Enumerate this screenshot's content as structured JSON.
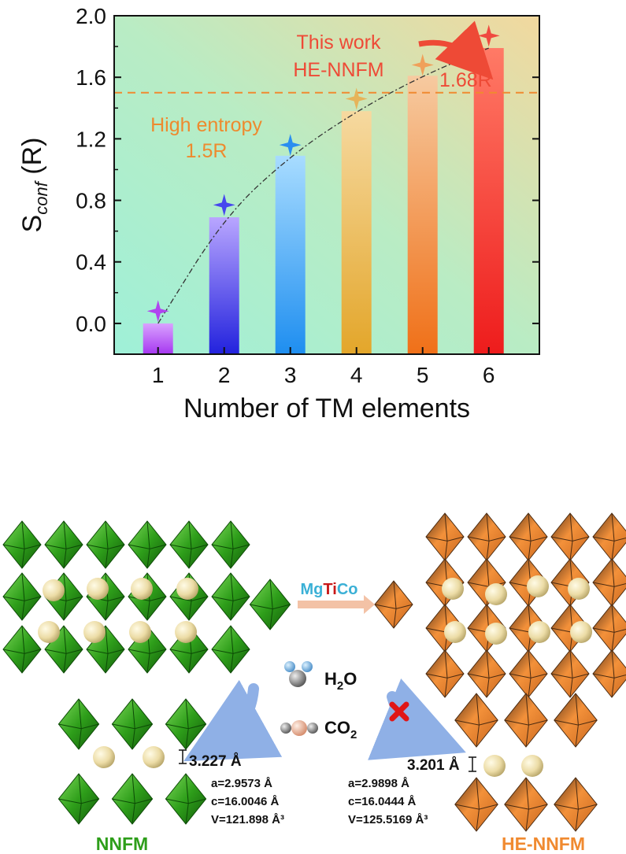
{
  "chart_data": {
    "type": "bar",
    "categories": [
      "1",
      "2",
      "3",
      "4",
      "5",
      "6"
    ],
    "values": [
      0.0,
      0.69,
      1.09,
      1.38,
      1.61,
      1.79
    ],
    "markers": [
      0.08,
      0.77,
      1.16,
      1.46,
      1.68,
      1.87
    ],
    "bar_colors": [
      [
        "#d9a2ff",
        "#a637f0"
      ],
      [
        "#b9a6ff",
        "#2222dd"
      ],
      [
        "#a8dcff",
        "#1e8ef0"
      ],
      [
        "#f6d9a0",
        "#e3a62a"
      ],
      [
        "#f6caa0",
        "#f07018"
      ],
      [
        "#ff7a66",
        "#ee1c1c"
      ]
    ],
    "marker_colors": [
      "#b044f0",
      "#4646ee",
      "#2a8ef0",
      "#e6b45a",
      "#f0a05a",
      "#f04a40"
    ],
    "xlabel": "Number of TM elements",
    "ylabel_main": "S",
    "ylabel_sub": "conf",
    "ylabel_unit": " (R)",
    "ylim": [
      -0.2,
      2.0
    ],
    "yticks": [
      "0.0",
      "0.4",
      "0.8",
      "1.2",
      "1.6",
      "2.0"
    ],
    "reference_line": {
      "value": 1.5,
      "label_1": "High entropy",
      "label_2": "1.5R",
      "color": "#f08a30"
    },
    "annotations": {
      "work_1": "This work",
      "work_2": "HE-NNFM",
      "value_label": "1.68R"
    }
  },
  "scheme": {
    "dopants": [
      {
        "text": "Mg",
        "color": "#3ab0d6"
      },
      {
        "text": "Ti",
        "color": "#c81818"
      },
      {
        "text": "Co",
        "color": "#3ab0d6"
      }
    ],
    "h2o": "H",
    "h2o_sub": "2",
    "h2o_tail": "O",
    "co2": "CO",
    "co2_sub": "2",
    "left_spacing": "3.227 Å",
    "right_spacing": "3.201 Å",
    "left_params": [
      "a=2.9573 Å",
      "c=16.0046 Å",
      "V=121.898 Å³"
    ],
    "right_params": [
      "a=2.9898 Å",
      "c=16.0444 Å",
      "V=125.5169 Å³"
    ],
    "left_name": "NNFM",
    "right_name": "HE-NNFM",
    "left_color": "#2e9e1a",
    "right_color": "#f08a30"
  }
}
